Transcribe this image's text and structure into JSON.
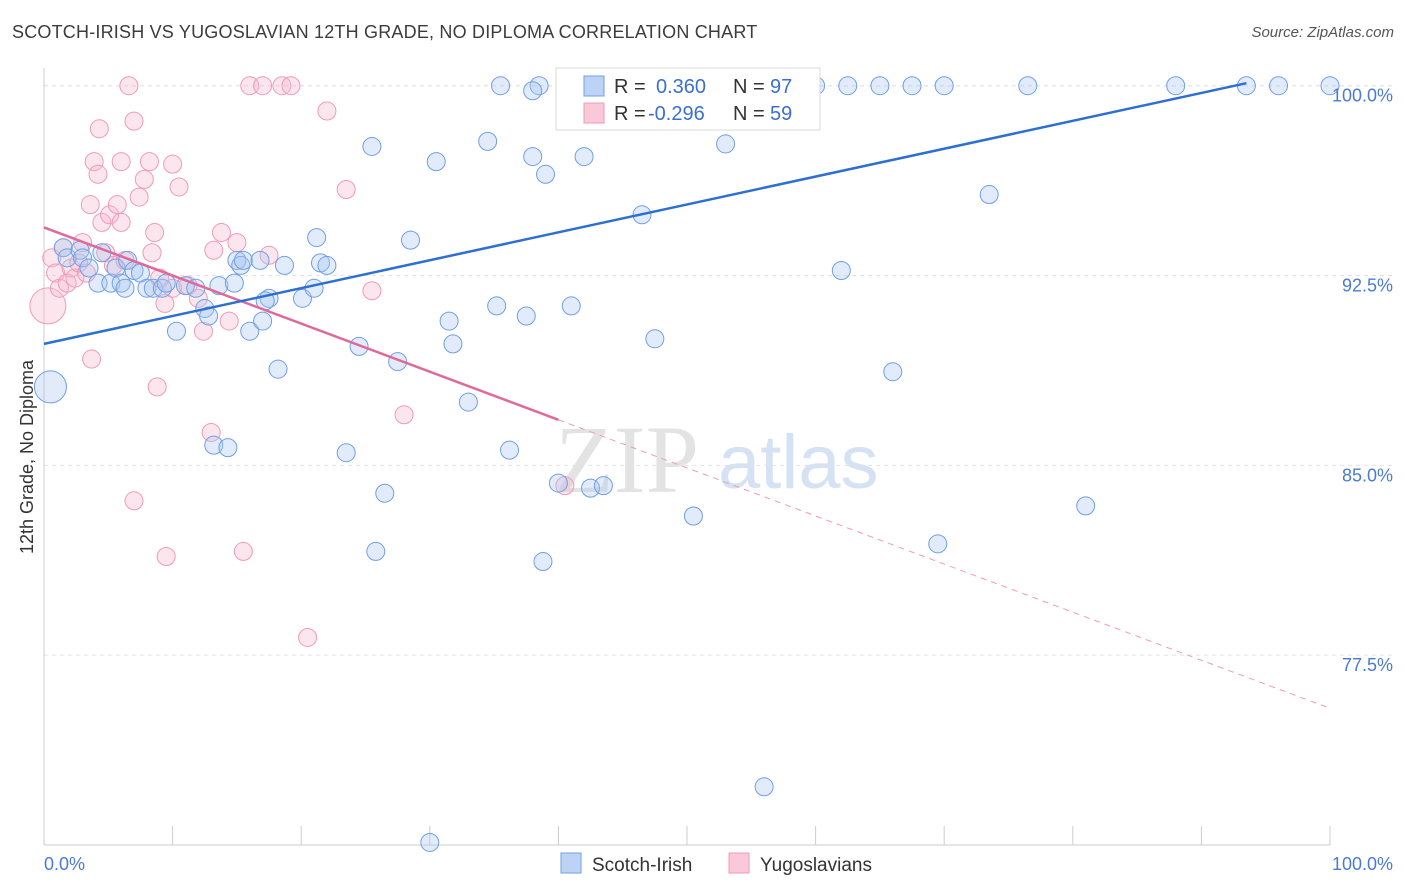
{
  "title": "SCOTCH-IRISH VS YUGOSLAVIAN 12TH GRADE, NO DIPLOMA CORRELATION CHART",
  "source": "Source: ZipAtlas.com",
  "watermark_zip": "ZIP",
  "watermark_atlas": "atlas",
  "colors": {
    "blue": "#6f9fe6",
    "blue_line": "#2d6fd2",
    "pink": "#f09ab8",
    "pink_line": "#e0689a",
    "tick": "#4a7bd4"
  },
  "legend": {
    "r_label": "R =",
    "n_label": "N =",
    "blue_r": "0.360",
    "blue_n": "97",
    "pink_r": "-0.296",
    "pink_n": "59"
  },
  "chart_data": {
    "type": "scatter",
    "title": "SCOTCH-IRISH VS YUGOSLAVIAN 12TH GRADE, NO DIPLOMA CORRELATION CHART",
    "xlabel": "",
    "ylabel": "12th Grade, No Diploma",
    "xlim": [
      0,
      100
    ],
    "ylim": [
      70,
      100.7
    ],
    "x_tick_labels": [
      "0.0%",
      "100.0%"
    ],
    "y_ticks": [
      77.5,
      85.0,
      92.5,
      100.0
    ],
    "y_tick_labels": [
      "77.5%",
      "85.0%",
      "92.5%",
      "100.0%"
    ],
    "grid": true,
    "legend_position": "top-center",
    "series": [
      {
        "name": "Scotch-Irish",
        "color": "#6f9fe6",
        "trend": {
          "x": [
            0,
            93.5
          ],
          "y": [
            89.8,
            100.1
          ]
        },
        "points": [
          [
            0.5,
            88.1
          ],
          [
            1.5,
            93.6
          ],
          [
            1.8,
            93.2
          ],
          [
            2.8,
            93.5
          ],
          [
            3,
            93.2
          ],
          [
            3.5,
            92.8
          ],
          [
            4.2,
            92.2
          ],
          [
            4.5,
            93.4
          ],
          [
            5.2,
            92.2
          ],
          [
            5.6,
            92.8
          ],
          [
            6,
            92.2
          ],
          [
            6.3,
            92.0
          ],
          [
            6.5,
            93.1
          ],
          [
            7,
            92.7
          ],
          [
            7.5,
            92.6
          ],
          [
            8,
            92.0
          ],
          [
            8.5,
            92.0
          ],
          [
            9.2,
            92.0
          ],
          [
            9.5,
            92.2
          ],
          [
            10.3,
            90.3
          ],
          [
            11,
            92.1
          ],
          [
            11.8,
            92.0
          ],
          [
            12.5,
            91.2
          ],
          [
            12.8,
            90.9
          ],
          [
            13.6,
            92.1
          ],
          [
            14.8,
            92.2
          ],
          [
            15,
            93.1
          ],
          [
            15.3,
            92.9
          ],
          [
            16,
            90.3
          ],
          [
            17,
            90.7
          ],
          [
            17.5,
            91.6
          ],
          [
            18.2,
            88.8
          ],
          [
            13.2,
            85.8
          ],
          [
            14.3,
            85.7
          ],
          [
            15.5,
            93.1
          ],
          [
            17.2,
            91.5
          ],
          [
            18.7,
            92.9
          ],
          [
            16.8,
            93.1
          ],
          [
            20.1,
            91.6
          ],
          [
            21,
            92.0
          ],
          [
            21.2,
            94.0
          ],
          [
            21.5,
            93.0
          ],
          [
            22,
            92.9
          ],
          [
            23.5,
            85.5
          ],
          [
            24.5,
            89.7
          ],
          [
            25.5,
            97.6
          ],
          [
            26.5,
            83.9
          ],
          [
            25.8,
            81.6
          ],
          [
            27.5,
            89.1
          ],
          [
            28.5,
            93.9
          ],
          [
            30.5,
            97.0
          ],
          [
            31.5,
            90.7
          ],
          [
            31.8,
            89.8
          ],
          [
            33,
            87.5
          ],
          [
            34.5,
            97.8
          ],
          [
            35.2,
            91.3
          ],
          [
            36.2,
            85.6
          ],
          [
            37.5,
            90.9
          ],
          [
            38,
            97.2
          ],
          [
            38.8,
            81.2
          ],
          [
            39,
            96.5
          ],
          [
            40,
            84.3
          ],
          [
            41,
            91.3
          ],
          [
            42,
            97.2
          ],
          [
            42.5,
            84.1
          ],
          [
            43.5,
            84.2
          ],
          [
            45,
            100.0
          ],
          [
            46.5,
            94.9
          ],
          [
            47.5,
            90.0
          ],
          [
            50.5,
            83.0
          ],
          [
            50.5,
            100.0
          ],
          [
            53,
            97.7
          ],
          [
            54.5,
            100.0
          ],
          [
            56,
            72.3
          ],
          [
            57,
            100.0
          ],
          [
            62,
            92.7
          ],
          [
            66,
            88.7
          ],
          [
            67.5,
            100.0
          ],
          [
            69.5,
            81.9
          ],
          [
            73.5,
            95.7
          ],
          [
            76.5,
            100.0
          ],
          [
            81,
            83.4
          ],
          [
            88,
            100.0
          ],
          [
            93.5,
            100.0
          ],
          [
            96,
            100.0
          ],
          [
            100,
            100.0
          ],
          [
            35.5,
            100.0
          ],
          [
            38.5,
            100.0
          ],
          [
            49,
            100.0
          ],
          [
            52.5,
            100.0
          ],
          [
            30,
            70.1
          ],
          [
            38,
            99.8
          ],
          [
            45.5,
            100.0
          ],
          [
            60,
            100.0
          ],
          [
            62.5,
            100.0
          ],
          [
            65,
            100.0
          ],
          [
            70,
            100.0
          ]
        ]
      },
      {
        "name": "Yugoslavians",
        "color": "#f09ab8",
        "trend": {
          "x": [
            0,
            40
          ],
          "y": [
            94.4,
            86.8
          ]
        },
        "trend_extension": {
          "x": [
            40,
            100
          ],
          "y": [
            86.8,
            75.4
          ]
        },
        "points": [
          [
            0.3,
            91.3
          ],
          [
            0.6,
            93.2
          ],
          [
            0.9,
            92.6
          ],
          [
            1.2,
            92.0
          ],
          [
            1.5,
            93.6
          ],
          [
            1.8,
            92.2
          ],
          [
            2.1,
            92.8
          ],
          [
            2.4,
            92.4
          ],
          [
            2.7,
            93.0
          ],
          [
            3.0,
            93.8
          ],
          [
            3.3,
            92.6
          ],
          [
            3.6,
            95.3
          ],
          [
            3.9,
            97.0
          ],
          [
            4.2,
            96.5
          ],
          [
            4.5,
            94.6
          ],
          [
            4.8,
            93.4
          ],
          [
            5.1,
            94.9
          ],
          [
            5.4,
            92.9
          ],
          [
            5.7,
            95.3
          ],
          [
            6.0,
            94.6
          ],
          [
            6.3,
            93.1
          ],
          [
            6.6,
            100.0
          ],
          [
            7,
            98.6
          ],
          [
            7.4,
            95.6
          ],
          [
            7.8,
            96.3
          ],
          [
            8.2,
            97.0
          ],
          [
            8.6,
            94.2
          ],
          [
            9.0,
            92.4
          ],
          [
            9.4,
            91.4
          ],
          [
            10,
            92.0
          ],
          [
            10.5,
            96.0
          ],
          [
            11.2,
            92.1
          ],
          [
            12,
            91.6
          ],
          [
            12.4,
            90.3
          ],
          [
            13.2,
            93.5
          ],
          [
            13.8,
            94.2
          ],
          [
            14.4,
            90.7
          ],
          [
            15,
            93.8
          ],
          [
            16,
            100.0
          ],
          [
            17,
            100.0
          ],
          [
            18.5,
            100.0
          ],
          [
            19.2,
            100.0
          ],
          [
            6.0,
            97.0
          ],
          [
            10.0,
            96.9
          ],
          [
            8.4,
            93.4
          ],
          [
            4.3,
            98.3
          ],
          [
            3.7,
            89.2
          ],
          [
            7.0,
            83.6
          ],
          [
            8.8,
            88.1
          ],
          [
            9.5,
            81.4
          ],
          [
            13.0,
            86.3
          ],
          [
            15.5,
            81.6
          ],
          [
            17.5,
            93.3
          ],
          [
            20.5,
            78.2
          ],
          [
            22,
            99.0
          ],
          [
            23.5,
            95.9
          ],
          [
            25.5,
            91.9
          ],
          [
            28,
            87.0
          ],
          [
            40.5,
            84.2
          ]
        ]
      }
    ]
  },
  "bottom_legend": {
    "blue_label": "Scotch-Irish",
    "pink_label": "Yugoslavians"
  }
}
